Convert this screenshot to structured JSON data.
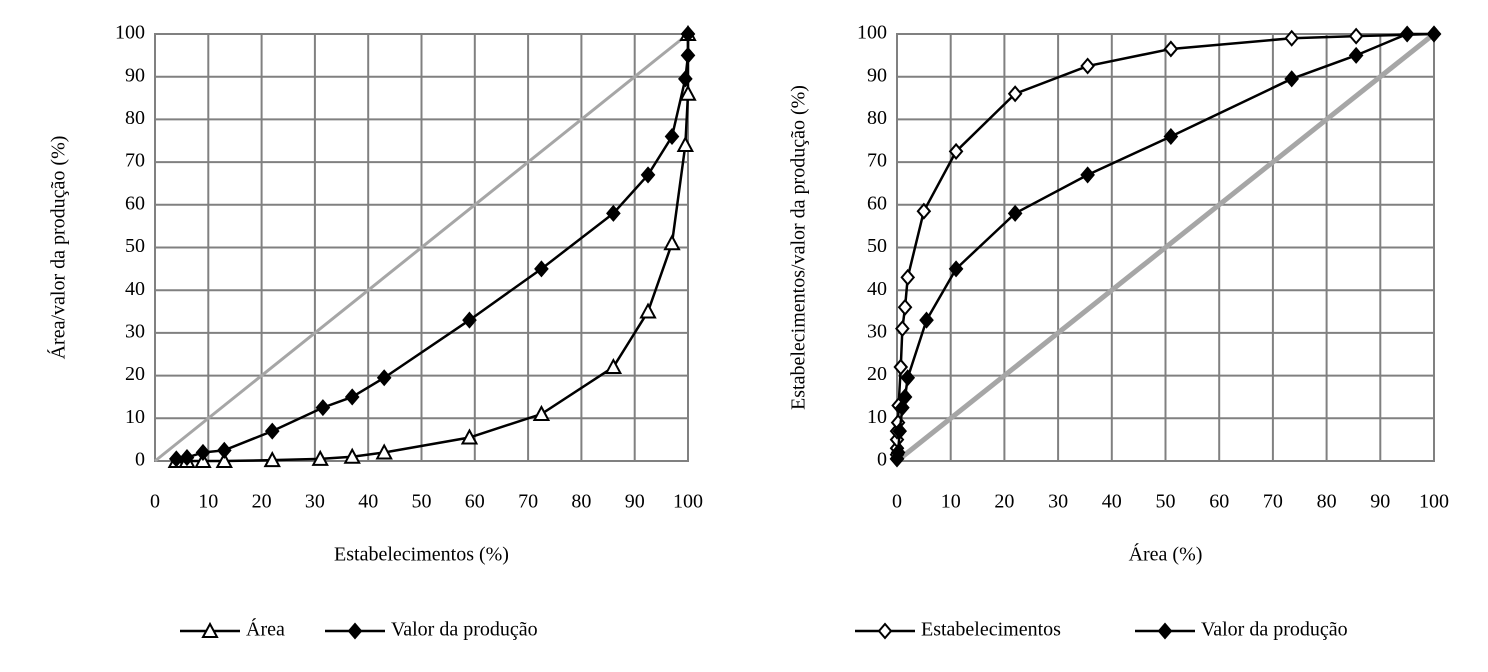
{
  "chart_data": [
    {
      "type": "line",
      "x_label": "Estabelecimentos (%)",
      "y_label": "Área/valor da produção (%)",
      "xlim": [
        0,
        100
      ],
      "ylim": [
        0,
        100
      ],
      "xticks": [
        0,
        10,
        20,
        30,
        40,
        50,
        60,
        70,
        80,
        90,
        100
      ],
      "yticks": [
        0,
        10,
        20,
        30,
        40,
        50,
        60,
        70,
        80,
        90,
        100
      ],
      "grid": true,
      "series": [
        {
          "name": "Área",
          "color": "#000000",
          "marker": "triangle-open",
          "x": [
            4,
            6,
            9,
            13,
            22,
            31,
            37,
            43,
            59,
            72.5,
            86,
            92.5,
            97,
            99.5,
            100,
            100
          ],
          "values": [
            0,
            0,
            0,
            0,
            0.2,
            0.5,
            1,
            2,
            5.5,
            11,
            22,
            35,
            51,
            74,
            86,
            100
          ]
        },
        {
          "name": "Valor da produção",
          "color": "#000000",
          "marker": "diamond",
          "x": [
            4,
            6,
            9,
            13,
            22,
            31.5,
            37,
            43,
            59,
            72.5,
            86,
            92.5,
            97,
            99.5,
            100,
            100
          ],
          "values": [
            0.5,
            0.8,
            2,
            2.5,
            7,
            12.5,
            15,
            19.5,
            33,
            45,
            58,
            67,
            76,
            89.5,
            95,
            100
          ]
        }
      ]
    },
    {
      "type": "line",
      "x_label": "Área (%)",
      "y_label": "Estabelecimentos/valor da produção (%)",
      "xlim": [
        0,
        100
      ],
      "ylim": [
        0,
        100
      ],
      "xticks": [
        0,
        10,
        20,
        30,
        40,
        50,
        60,
        70,
        80,
        90,
        100
      ],
      "yticks": [
        0,
        10,
        20,
        30,
        40,
        50,
        60,
        70,
        80,
        90,
        100
      ],
      "grid": true,
      "series": [
        {
          "name": "Estabelecimentos",
          "color": "#000000",
          "marker": "diamond-open",
          "x": [
            0,
            0,
            0,
            0,
            0,
            0.2,
            0.3,
            0.7,
            1,
            1.5,
            2,
            5,
            11,
            22,
            35.5,
            51,
            73.5,
            85.5,
            100
          ],
          "values": [
            0.5,
            1.5,
            3,
            5,
            7,
            9,
            13,
            22,
            31,
            36,
            43,
            58.5,
            72.5,
            86,
            92.5,
            96.5,
            99,
            99.5,
            100
          ]
        },
        {
          "name": "Valor da produção",
          "color": "#000000",
          "marker": "diamond",
          "x": [
            0,
            0.2,
            0.5,
            1,
            1.5,
            2,
            5.5,
            11,
            22,
            35.5,
            51,
            73.5,
            85.5,
            95,
            100
          ],
          "values": [
            0.5,
            2,
            7,
            12.5,
            15,
            19.5,
            33,
            45,
            58,
            67,
            76,
            89.5,
            95,
            100,
            100
          ]
        }
      ]
    }
  ]
}
